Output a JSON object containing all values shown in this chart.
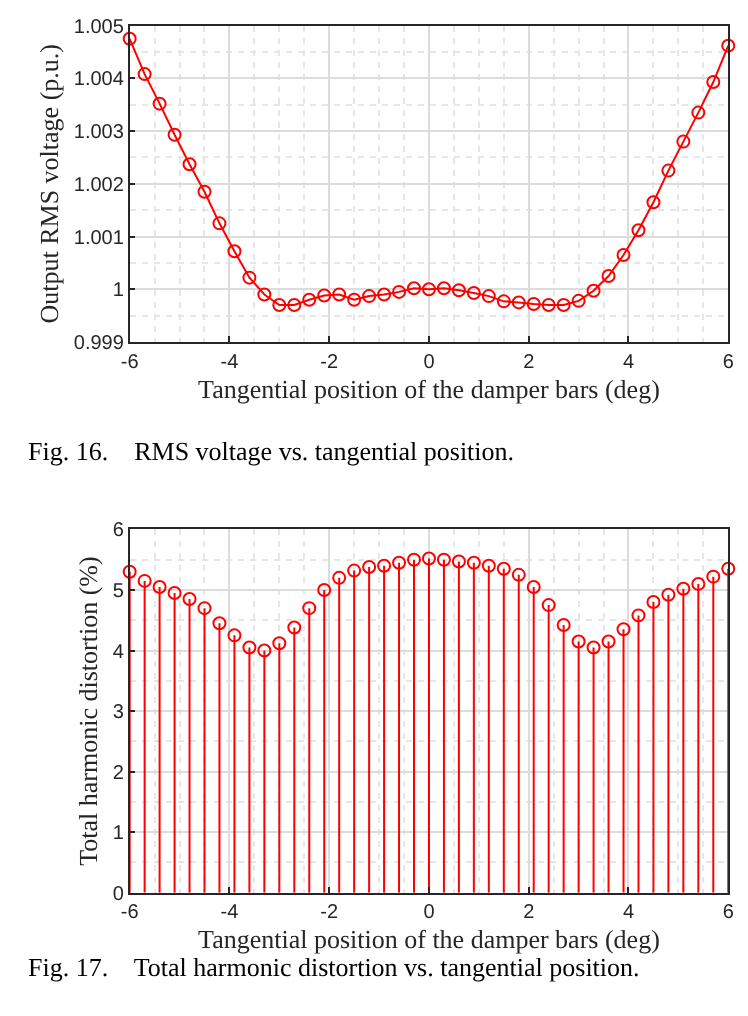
{
  "chart_data": [
    {
      "type": "line",
      "xlabel": "Tangential position of the damper bars (deg)",
      "ylabel": "Output RMS voltage (p.u.)",
      "marker": "circle",
      "grid": true,
      "xlim": [
        -6,
        6
      ],
      "xticks": [
        -6,
        -4,
        -2,
        0,
        2,
        4,
        6
      ],
      "ylim": [
        0.999,
        1.005
      ],
      "yticks": [
        0.999,
        1,
        1.001,
        1.002,
        1.003,
        1.004,
        1.005
      ],
      "x": [
        -6,
        -5.7,
        -5.4,
        -5.1,
        -4.8,
        -4.5,
        -4.2,
        -3.9,
        -3.6,
        -3.3,
        -3,
        -2.7,
        -2.4,
        -2.1,
        -1.8,
        -1.5,
        -1.2,
        -0.9,
        -0.6,
        -0.3,
        0,
        0.3,
        0.6,
        0.9,
        1.2,
        1.5,
        1.8,
        2.1,
        2.4,
        2.7,
        3,
        3.3,
        3.6,
        3.9,
        4.2,
        4.5,
        4.8,
        5.1,
        5.4,
        5.7,
        6
      ],
      "series": [
        {
          "color": "#ff0000",
          "values": [
            1.00475,
            1.00408,
            1.00352,
            1.00293,
            1.00237,
            1.00185,
            1.00125,
            1.00072,
            1.00022,
            0.9999,
            0.9997,
            0.9997,
            0.9998,
            0.99988,
            0.9999,
            0.9998,
            0.99987,
            0.9999,
            0.99995,
            1.00002,
            1.0,
            1.00002,
            0.99998,
            0.99993,
            0.99987,
            0.99977,
            0.99975,
            0.99972,
            0.9997,
            0.9997,
            0.99978,
            0.99997,
            1.00025,
            1.00065,
            1.00112,
            1.00165,
            1.00225,
            1.0028,
            1.00335,
            1.00393,
            1.00462
          ]
        }
      ],
      "annotations": [
        "Fig. 16.    RMS voltage vs. tangential position."
      ]
    },
    {
      "type": "lollipop",
      "xlabel": "Tangential position of the damper bars (deg)",
      "ylabel": "Total harmonic distortion (%)",
      "marker": "circle",
      "grid": true,
      "xlim": [
        -6,
        6
      ],
      "xticks": [
        -6,
        -4,
        -2,
        0,
        2,
        4,
        6
      ],
      "ylim": [
        0,
        6
      ],
      "yticks": [
        0,
        1,
        2,
        3,
        4,
        5,
        6
      ],
      "x": [
        -6,
        -5.7,
        -5.4,
        -5.1,
        -4.8,
        -4.5,
        -4.2,
        -3.9,
        -3.6,
        -3.3,
        -3,
        -2.7,
        -2.4,
        -2.1,
        -1.8,
        -1.5,
        -1.2,
        -0.9,
        -0.6,
        -0.3,
        0,
        0.3,
        0.6,
        0.9,
        1.2,
        1.5,
        1.8,
        2.1,
        2.4,
        2.7,
        3,
        3.3,
        3.6,
        3.9,
        4.2,
        4.5,
        4.8,
        5.1,
        5.4,
        5.7,
        6
      ],
      "series": [
        {
          "color": "#ff0000",
          "values": [
            5.3,
            5.15,
            5.05,
            4.95,
            4.85,
            4.7,
            4.45,
            4.25,
            4.05,
            4.0,
            4.12,
            4.38,
            4.7,
            5.0,
            5.2,
            5.32,
            5.38,
            5.4,
            5.45,
            5.5,
            5.52,
            5.5,
            5.47,
            5.45,
            5.4,
            5.35,
            5.25,
            5.05,
            4.75,
            4.42,
            4.15,
            4.05,
            4.15,
            4.35,
            4.58,
            4.8,
            4.92,
            5.02,
            5.1,
            5.22,
            5.35
          ]
        }
      ],
      "annotations": [
        "Fig. 17.    Total harmonic distortion vs. tangential position."
      ]
    }
  ]
}
